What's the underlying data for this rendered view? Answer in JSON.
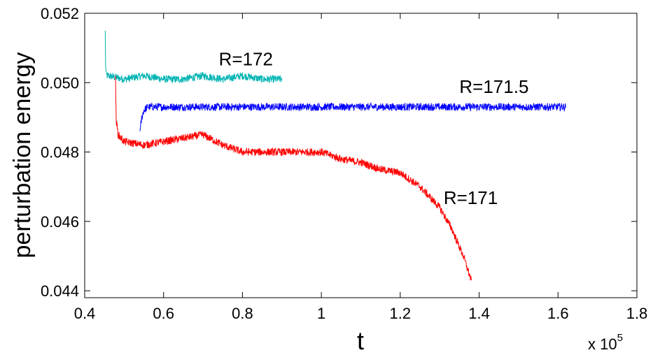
{
  "chart_data": {
    "type": "line",
    "title": "",
    "xlabel": "t",
    "ylabel": "perturbation energy",
    "x_multiplier": "x 10",
    "x_multiplier_exponent": "5",
    "xlim": [
      0.4,
      1.8
    ],
    "ylim": [
      0.0438,
      0.052
    ],
    "xticks": [
      0.4,
      0.6,
      0.8,
      1.0,
      1.2,
      1.4,
      1.6,
      1.8
    ],
    "xtick_labels": [
      "0.4",
      "0.6",
      "0.8",
      "1",
      "1.2",
      "1.4",
      "1.6",
      "1.8"
    ],
    "yticks": [
      0.044,
      0.046,
      0.048,
      0.05,
      0.052
    ],
    "ytick_labels": [
      "0.044",
      "0.046",
      "0.048",
      "0.050",
      "0.052"
    ],
    "grid": false,
    "legend": "none",
    "series": [
      {
        "name": "R=172",
        "color": "#00b3b3",
        "noise": 0.00011,
        "x": [
          0.452,
          0.453,
          0.455,
          0.46,
          0.5,
          0.55,
          0.6,
          0.65,
          0.7,
          0.75,
          0.8,
          0.85,
          0.9
        ],
        "y": [
          0.0515,
          0.0505,
          0.0502,
          0.0502,
          0.0501,
          0.0502,
          0.0501,
          0.0501,
          0.0502,
          0.0501,
          0.0502,
          0.0501,
          0.0501
        ]
      },
      {
        "name": "R=171.5",
        "color": "#0000ff",
        "noise": 0.00011,
        "x": [
          0.54,
          0.545,
          0.55,
          0.56,
          0.6,
          0.7,
          0.8,
          0.9,
          1.0,
          1.1,
          1.2,
          1.3,
          1.4,
          1.5,
          1.62
        ],
        "y": [
          0.0486,
          0.049,
          0.0492,
          0.0493,
          0.0493,
          0.0493,
          0.0493,
          0.0493,
          0.0493,
          0.0493,
          0.0493,
          0.0493,
          0.0493,
          0.0493,
          0.0493
        ]
      },
      {
        "name": "R=171",
        "color": "#ff0000",
        "noise": 0.00011,
        "x": [
          0.478,
          0.48,
          0.485,
          0.5,
          0.55,
          0.6,
          0.7,
          0.75,
          0.8,
          0.9,
          1.0,
          1.05,
          1.1,
          1.15,
          1.2,
          1.25,
          1.3,
          1.33,
          1.36,
          1.38
        ],
        "y": [
          0.0502,
          0.0489,
          0.0485,
          0.0483,
          0.0482,
          0.0483,
          0.0485,
          0.0482,
          0.048,
          0.048,
          0.048,
          0.0478,
          0.0477,
          0.0475,
          0.0474,
          0.047,
          0.0464,
          0.0458,
          0.045,
          0.0443
        ]
      }
    ],
    "annotations": [
      {
        "text": "R=172",
        "x": 0.74,
        "y": 0.0505
      },
      {
        "text": "R=171.5",
        "x": 1.35,
        "y": 0.0497
      },
      {
        "text": "R=171",
        "x": 1.31,
        "y": 0.0465
      }
    ]
  }
}
